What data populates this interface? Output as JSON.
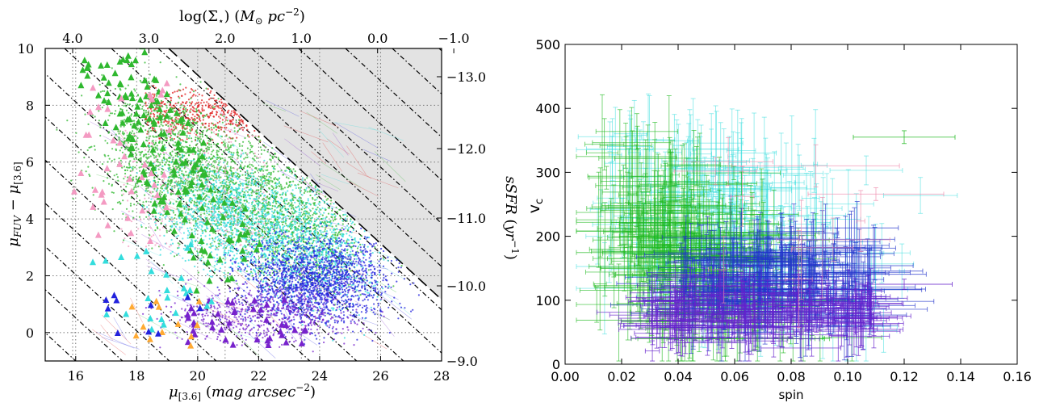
{
  "chart_data": [
    {
      "type": "scatter",
      "xlabel": "μ[3.6] (mag arcsec⁻²)",
      "ylabel": "μFUV − μ[3.6]",
      "top_xlabel": "log(Σ⋆) (M⊙ pc⁻²)",
      "right_ylabel": "sSFR (yr⁻¹)",
      "xlim": [
        15,
        28
      ],
      "ylim": [
        -1,
        10
      ],
      "x_ticks": [
        "16",
        "18",
        "20",
        "22",
        "24",
        "26",
        "28"
      ],
      "y_ticks": [
        "0",
        "2",
        "4",
        "6",
        "8",
        "10"
      ],
      "top_ticks": [
        "4.0",
        "3.0",
        "2.0",
        "1.0",
        "0.0",
        "−1.0"
      ],
      "right_ticks": [
        "−13.0",
        "−12.0",
        "−11.0",
        "−10.0",
        "−9.0"
      ],
      "grid": "dotted",
      "shaded_region": "above dashed line",
      "colors": [
        "#e02020",
        "#2fb82f",
        "#33dddd",
        "#2222dd",
        "#7722cc",
        "#f49ac2",
        "#ffaa33"
      ]
    },
    {
      "type": "scatter",
      "xlabel": "spin",
      "ylabel": "v꜀",
      "xlim": [
        0.0,
        0.16
      ],
      "ylim": [
        0,
        500
      ],
      "x_ticks": [
        "0.00",
        "0.02",
        "0.04",
        "0.06",
        "0.08",
        "0.10",
        "0.12",
        "0.14",
        "0.16"
      ],
      "y_ticks": [
        "0",
        "100",
        "200",
        "300",
        "400",
        "500"
      ],
      "error_bars": "horizontal and vertical",
      "colors": [
        "#1db81d",
        "#33dddd",
        "#2233cc",
        "#6622cc",
        "#ee88aa"
      ]
    }
  ]
}
